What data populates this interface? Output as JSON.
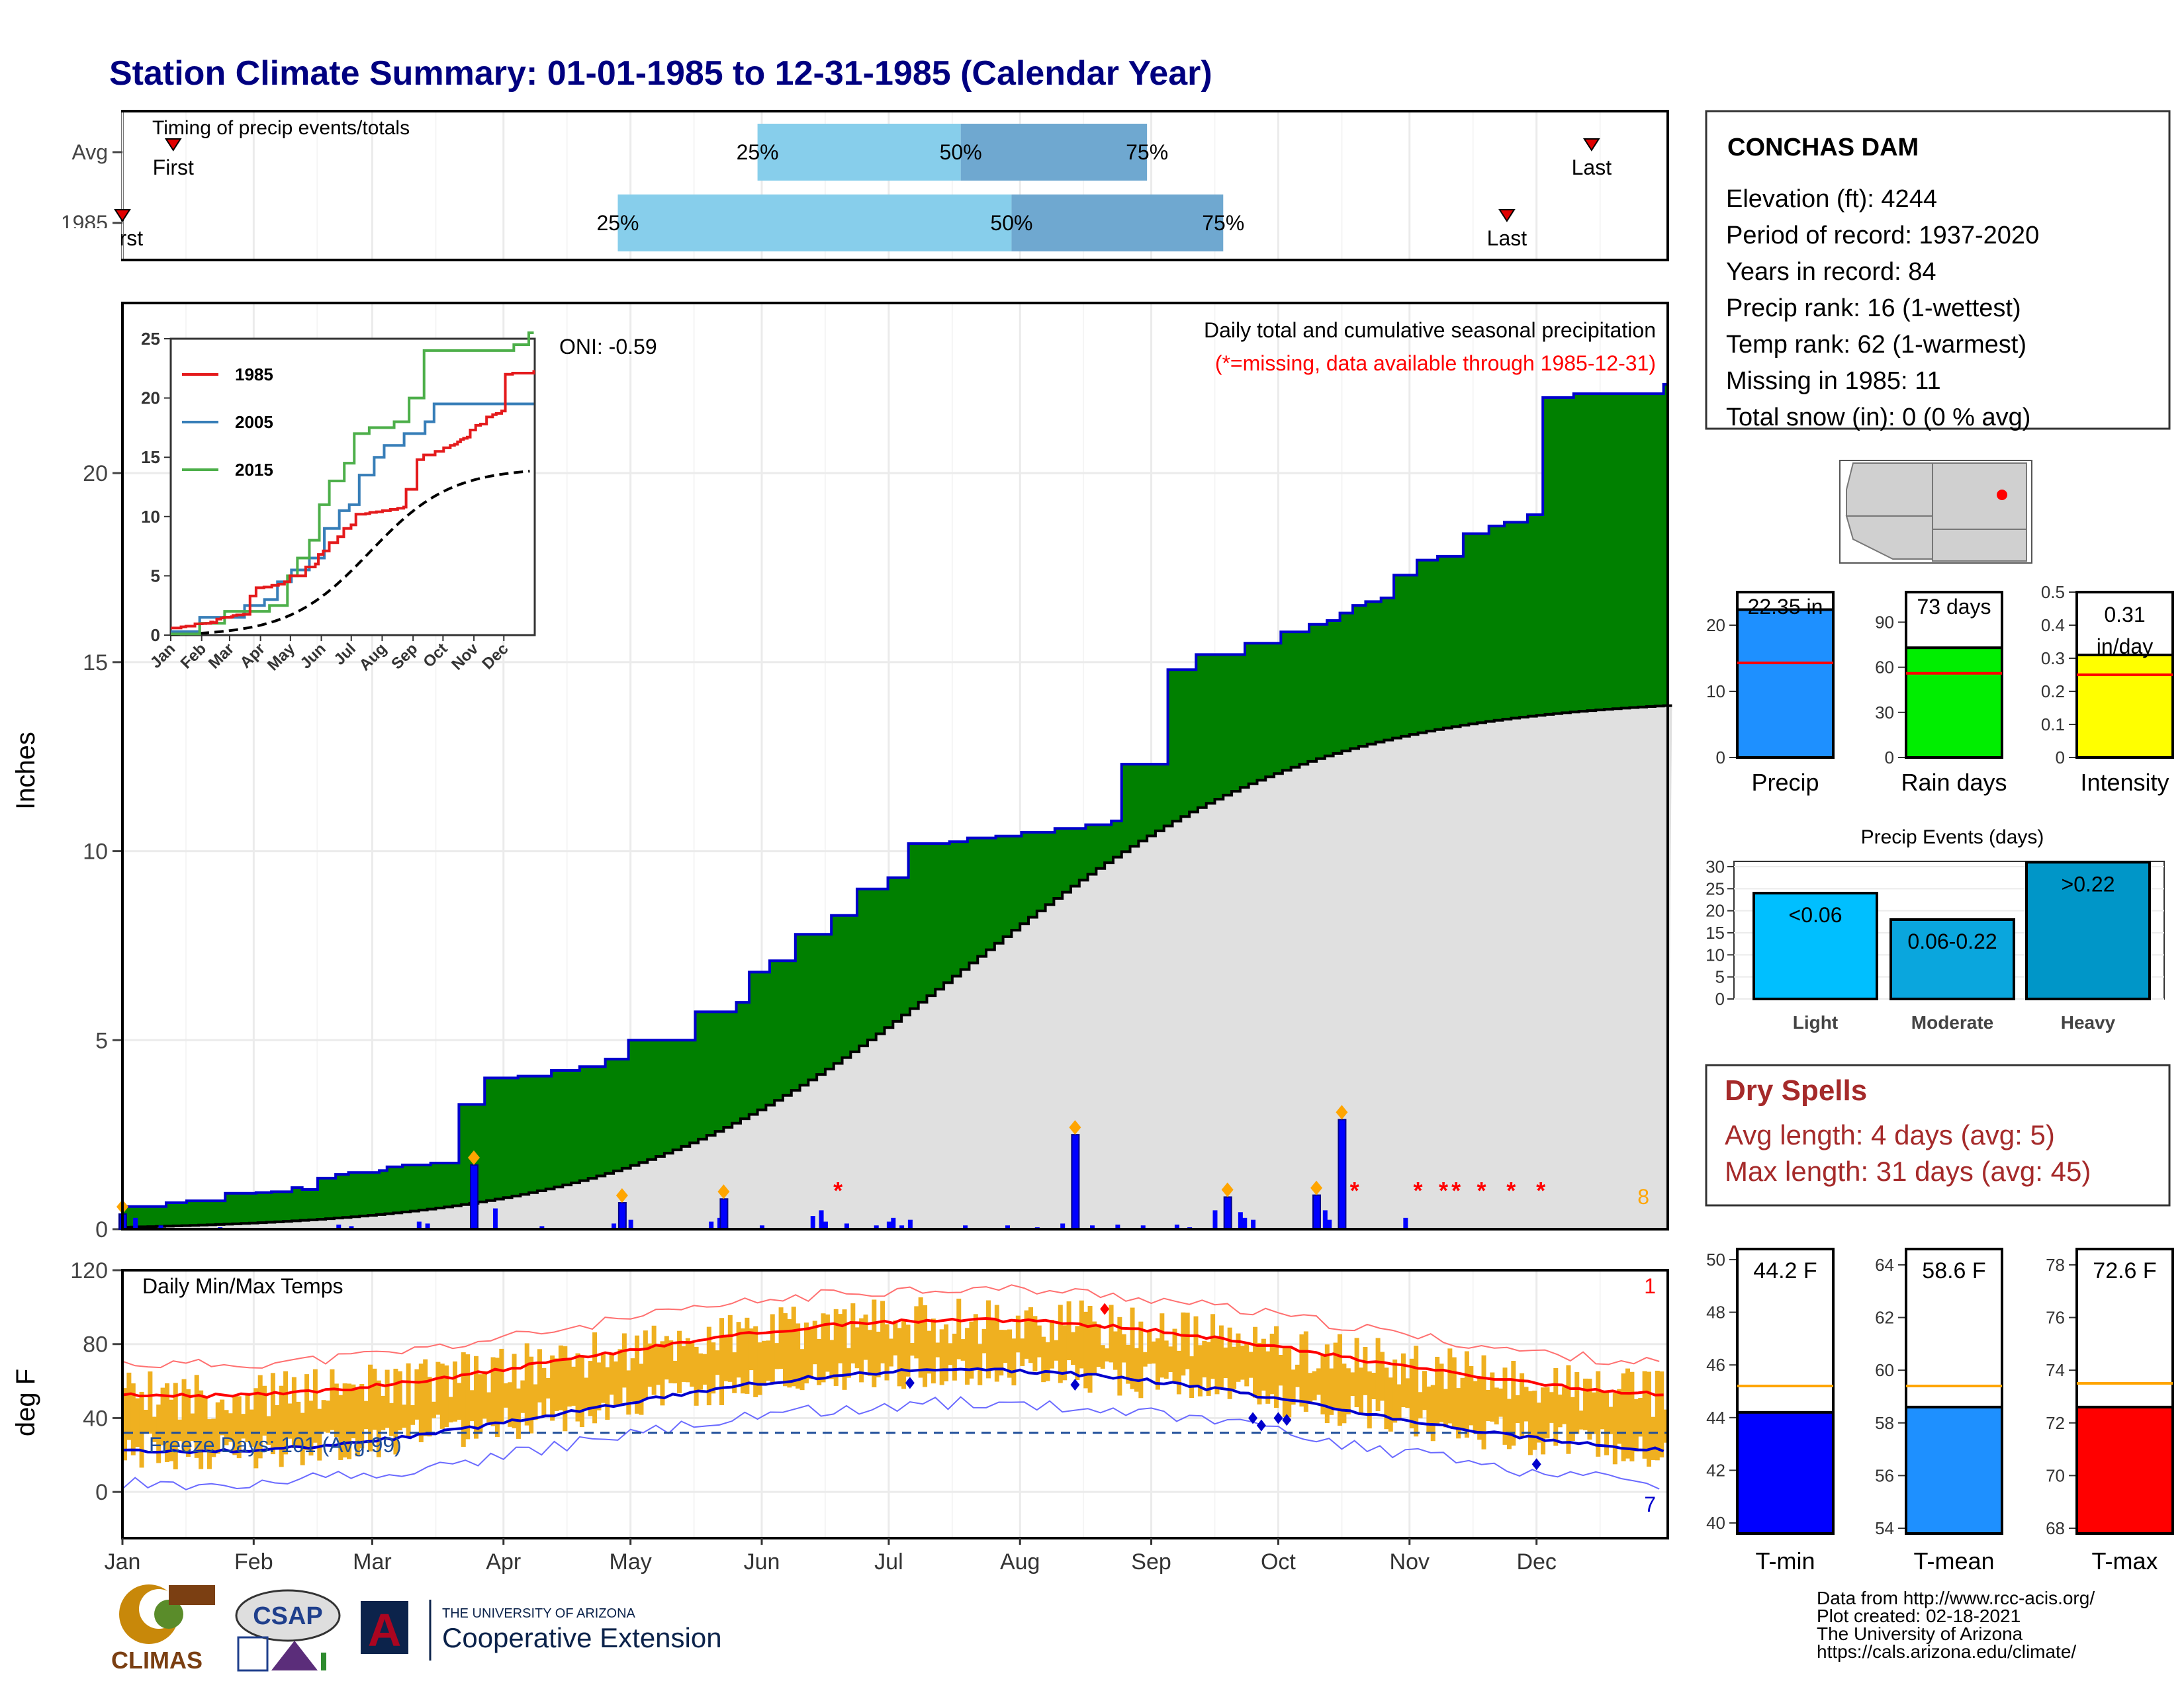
{
  "title": "Station Climate Summary: 01-01-1985 to 12-31-1985 (Calendar Year)",
  "months": [
    "Jan",
    "Feb",
    "Mar",
    "Apr",
    "May",
    "Jun",
    "Jul",
    "Aug",
    "Sep",
    "Oct",
    "Nov",
    "Dec"
  ],
  "timing": {
    "label": "Timing of precip events/totals",
    "rows": [
      {
        "name": "Avg",
        "first_doy": 13,
        "last_doy": 348,
        "p25_doy": 151,
        "p50_doy": 199,
        "p75_doy": 243,
        "first_label": "First",
        "last_label": "Last"
      },
      {
        "name": "1985",
        "first_doy": 1,
        "last_doy": 328,
        "p25_doy": 118,
        "p50_doy": 211,
        "p75_doy": 261,
        "first_label": "First",
        "last_label": "Last"
      }
    ],
    "pct_labels": [
      "25%",
      "50%",
      "75%"
    ]
  },
  "precip": {
    "ylabel": "Inches",
    "caption": "Daily total and cumulative seasonal precipitation",
    "missing_note": "(*=missing, data available through 1985-12-31)",
    "oni": "ONI: -0.59",
    "count_label": "8",
    "yticks": [
      0,
      5,
      10,
      15,
      20
    ],
    "ylim": [
      0,
      24.5
    ],
    "cumulative_1985": [
      [
        0,
        0.6
      ],
      [
        17,
        0.7
      ],
      [
        25,
        0.75
      ],
      [
        40,
        0.95
      ],
      [
        52,
        0.97
      ],
      [
        58,
        0.99
      ],
      [
        66,
        1.1
      ],
      [
        70,
        1.05
      ],
      [
        76,
        1.35
      ],
      [
        83,
        1.45
      ],
      [
        88,
        1.5
      ],
      [
        100,
        1.55
      ],
      [
        103,
        1.65
      ],
      [
        109,
        1.7
      ],
      [
        120,
        1.75
      ],
      [
        131,
        3.3
      ],
      [
        141,
        4.0
      ],
      [
        154,
        4.05
      ],
      [
        167,
        4.2
      ],
      [
        178,
        4.3
      ],
      [
        188,
        4.5
      ],
      [
        197,
        5.0
      ],
      [
        223,
        5.75
      ],
      [
        239,
        6.0
      ],
      [
        244,
        6.8
      ],
      [
        252,
        7.1
      ],
      [
        262,
        7.8
      ],
      [
        276,
        8.3
      ],
      [
        286,
        9.0
      ],
      [
        298,
        9.3
      ],
      [
        306,
        10.2
      ],
      [
        322,
        10.25
      ],
      [
        329,
        10.35
      ],
      [
        340,
        10.4
      ],
      [
        350,
        10.5
      ],
      [
        363,
        10.6
      ],
      [
        375,
        10.7
      ],
      [
        385,
        10.8
      ],
      [
        389,
        12.3
      ],
      [
        407,
        14.8
      ],
      [
        418,
        15.2
      ],
      [
        437,
        15.5
      ],
      [
        451,
        15.8
      ],
      [
        462,
        16.0
      ],
      [
        469,
        16.1
      ],
      [
        474,
        16.3
      ],
      [
        479,
        16.5
      ],
      [
        484,
        16.6
      ],
      [
        490,
        16.7
      ],
      [
        495,
        17.3
      ],
      [
        504,
        17.7
      ],
      [
        512,
        17.8
      ],
      [
        522,
        18.4
      ],
      [
        532,
        18.6
      ],
      [
        538,
        18.7
      ],
      [
        547,
        18.9
      ],
      [
        553,
        22.0
      ],
      [
        565,
        22.1
      ],
      [
        600,
        22.35
      ]
    ],
    "events": [
      {
        "day": 1,
        "value": 0.4,
        "diamond": true
      },
      {
        "day": 84,
        "value": 1.7,
        "diamond": true
      },
      {
        "day": 119,
        "value": 0.7,
        "diamond": true
      },
      {
        "day": 143,
        "value": 0.8,
        "diamond": true
      },
      {
        "day": 226,
        "value": 2.5,
        "diamond": true
      },
      {
        "day": 262,
        "value": 0.85,
        "diamond": true
      },
      {
        "day": 283,
        "value": 0.9,
        "diamond": true
      },
      {
        "day": 289,
        "value": 2.9,
        "diamond": true
      }
    ],
    "missing_marker": "*"
  },
  "inset": {
    "legend": [
      {
        "name": "1985",
        "color": "#e41a1c"
      },
      {
        "name": "2005",
        "color": "#377eb8"
      },
      {
        "name": "2015",
        "color": "#4daf4a"
      }
    ],
    "yticks": [
      0,
      5,
      10,
      15,
      20,
      25
    ]
  },
  "temps": {
    "ylabel": "deg F",
    "label": "Daily Min/Max Temps",
    "freeze_label": "Freeze Days: 101 (Avg:99)",
    "yticks": [
      0,
      40,
      80,
      120
    ],
    "ylim": [
      -25,
      120
    ],
    "count_top": "1",
    "count_bottom": "7",
    "freeze_line": 32
  },
  "station": {
    "name": "CONCHAS DAM",
    "lines": [
      "Elevation (ft): 4244",
      "Period of record: 1937-2020",
      "Years in record: 84",
      "Precip rank: 16 (1-wettest)",
      "Temp rank: 62 (1-warmest)",
      "Missing in 1985: 11",
      "Total snow (in): 0 (0 % avg)"
    ]
  },
  "summary_bars": [
    {
      "name": "Precip",
      "label": "22.35 in",
      "value": 22.35,
      "avg": 14.3,
      "ylim": [
        0,
        25
      ],
      "yticks": [
        0,
        10,
        20
      ],
      "color": "#1e90ff"
    },
    {
      "name": "Rain days",
      "label": "73 days",
      "value": 73,
      "avg": 56,
      "ylim": [
        0,
        110
      ],
      "yticks": [
        0,
        30,
        60,
        90
      ],
      "color": "#00ee00"
    },
    {
      "name": "Intensity",
      "label": "0.31 in/day",
      "value": 0.31,
      "avg": 0.25,
      "ylim": [
        0,
        0.5
      ],
      "yticks": [
        0,
        0.1,
        0.2,
        0.3,
        0.4,
        0.5
      ],
      "color": "#ffff00"
    }
  ],
  "events_chart": {
    "title": "Precip Events (days)",
    "yticks": [
      0,
      5,
      10,
      15,
      20,
      25,
      30
    ],
    "bars": [
      {
        "name": "Light",
        "label": "<0.06",
        "value": 24,
        "color": "#00bfff"
      },
      {
        "name": "Moderate",
        "label": "0.06-0.22",
        "value": 18,
        "color": "#0aa6dd"
      },
      {
        "name": "Heavy",
        "label": ">0.22",
        "value": 31,
        "color": "#0096c8"
      }
    ]
  },
  "dry_spells": {
    "title": "Dry Spells",
    "avg": "Avg length: 4 days (avg: 5)",
    "max": "Max length: 31 days (avg: 45)"
  },
  "temp_bars": [
    {
      "name": "T-min",
      "label": "44.2 F",
      "value": 44.2,
      "avg": 45.2,
      "ylim": [
        39.6,
        50.4
      ],
      "yticks": [
        40,
        42,
        44,
        46,
        48,
        50
      ],
      "color": "#0000ff"
    },
    {
      "name": "T-mean",
      "label": "58.6 F",
      "value": 58.6,
      "avg": 59.4,
      "ylim": [
        53.8,
        64.6
      ],
      "yticks": [
        54,
        56,
        58,
        60,
        62,
        64
      ],
      "color": "#1e90ff"
    },
    {
      "name": "T-max",
      "label": "72.6 F",
      "value": 72.6,
      "avg": 73.5,
      "ylim": [
        67.8,
        78.6
      ],
      "yticks": [
        68,
        70,
        72,
        74,
        76,
        78
      ],
      "color": "#ff0000"
    }
  ],
  "footer": [
    "Data from http://www.rcc-acis.org/",
    "Plot created: 02-18-2021",
    "The University of Arizona",
    "https://cals.arizona.edu/climate/"
  ],
  "logos": {
    "climas": "CLIMAS",
    "csap": "CSAP",
    "ua_small": "THE UNIVERSITY OF ARIZONA",
    "ua_big": "Cooperative Extension"
  },
  "colors": {
    "title": "#000080",
    "cum_fill": "#008000",
    "cum_line": "#0000cd",
    "avg_fill": "#e0e0e0",
    "temp_band": "#efb020",
    "tmax": "#ff0000",
    "tmin": "#0000cd",
    "dry": "#a52a2a"
  }
}
